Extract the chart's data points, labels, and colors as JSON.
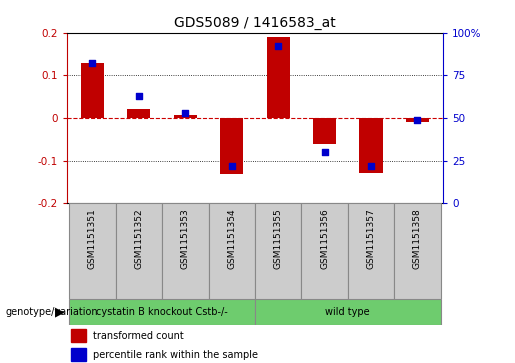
{
  "title": "GDS5089 / 1416583_at",
  "samples": [
    "GSM1151351",
    "GSM1151352",
    "GSM1151353",
    "GSM1151354",
    "GSM1151355",
    "GSM1151356",
    "GSM1151357",
    "GSM1151358"
  ],
  "red_bars": [
    0.13,
    0.02,
    0.008,
    -0.132,
    0.19,
    -0.06,
    -0.13,
    -0.01
  ],
  "blue_dots_pct": [
    82,
    63,
    53,
    22,
    92,
    30,
    22,
    49
  ],
  "ylim": [
    -0.2,
    0.2
  ],
  "yticks_left": [
    -0.2,
    -0.1,
    0.0,
    0.1,
    0.2
  ],
  "ytick_left_labels": [
    "-0.2",
    "-0.1",
    "0",
    "0.1",
    "0.2"
  ],
  "yticks_right_pct": [
    0,
    25,
    50,
    75,
    100
  ],
  "ytick_right_labels": [
    "0",
    "25",
    "50",
    "75",
    "100%"
  ],
  "group1_label": "cystatin B knockout Cstb-/-",
  "group2_label": "wild type",
  "group1_samples": 4,
  "legend_red": "transformed count",
  "legend_blue": "percentile rank within the sample",
  "genotype_label": "genotype/variation",
  "red_color": "#C00000",
  "blue_color": "#0000CC",
  "zero_line_color": "#CC0000",
  "group_color": "#6ECC6E",
  "table_color": "#CCCCCC",
  "bar_width": 0.5,
  "title_fontsize": 10,
  "tick_fontsize": 7.5,
  "label_fontsize": 7,
  "sample_fontsize": 6.5
}
